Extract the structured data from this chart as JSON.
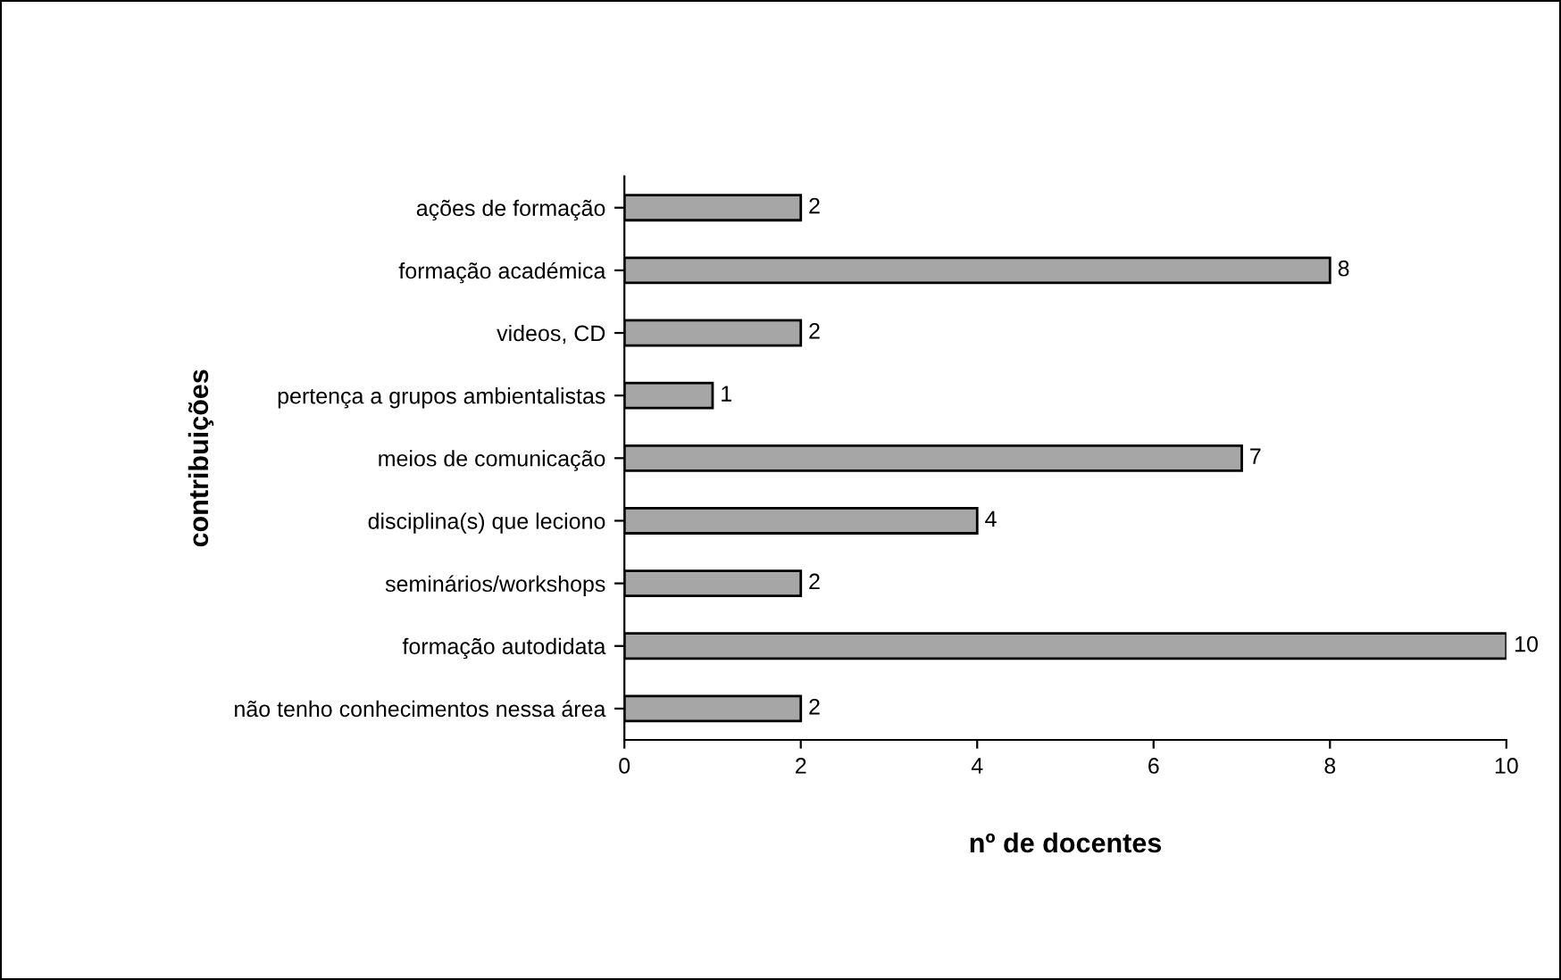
{
  "chart_data": {
    "type": "bar",
    "orientation": "horizontal",
    "xlabel": "nº de docentes",
    "ylabel": "contribuições",
    "categories": [
      "ações de formação",
      "formação académica",
      "videos, CD",
      "pertença a grupos ambientalistas",
      "meios de comunicação",
      "disciplina(s) que leciono",
      "seminários/workshops",
      "formação autodidata",
      "não tenho conhecimentos nessa área"
    ],
    "values": [
      2,
      8,
      2,
      1,
      7,
      4,
      2,
      10,
      2
    ],
    "color": "#a6a6a6",
    "xlim": [
      0,
      10
    ],
    "xticks": [
      0,
      2,
      4,
      6,
      8,
      10
    ],
    "data_labels": true,
    "grid": false
  }
}
